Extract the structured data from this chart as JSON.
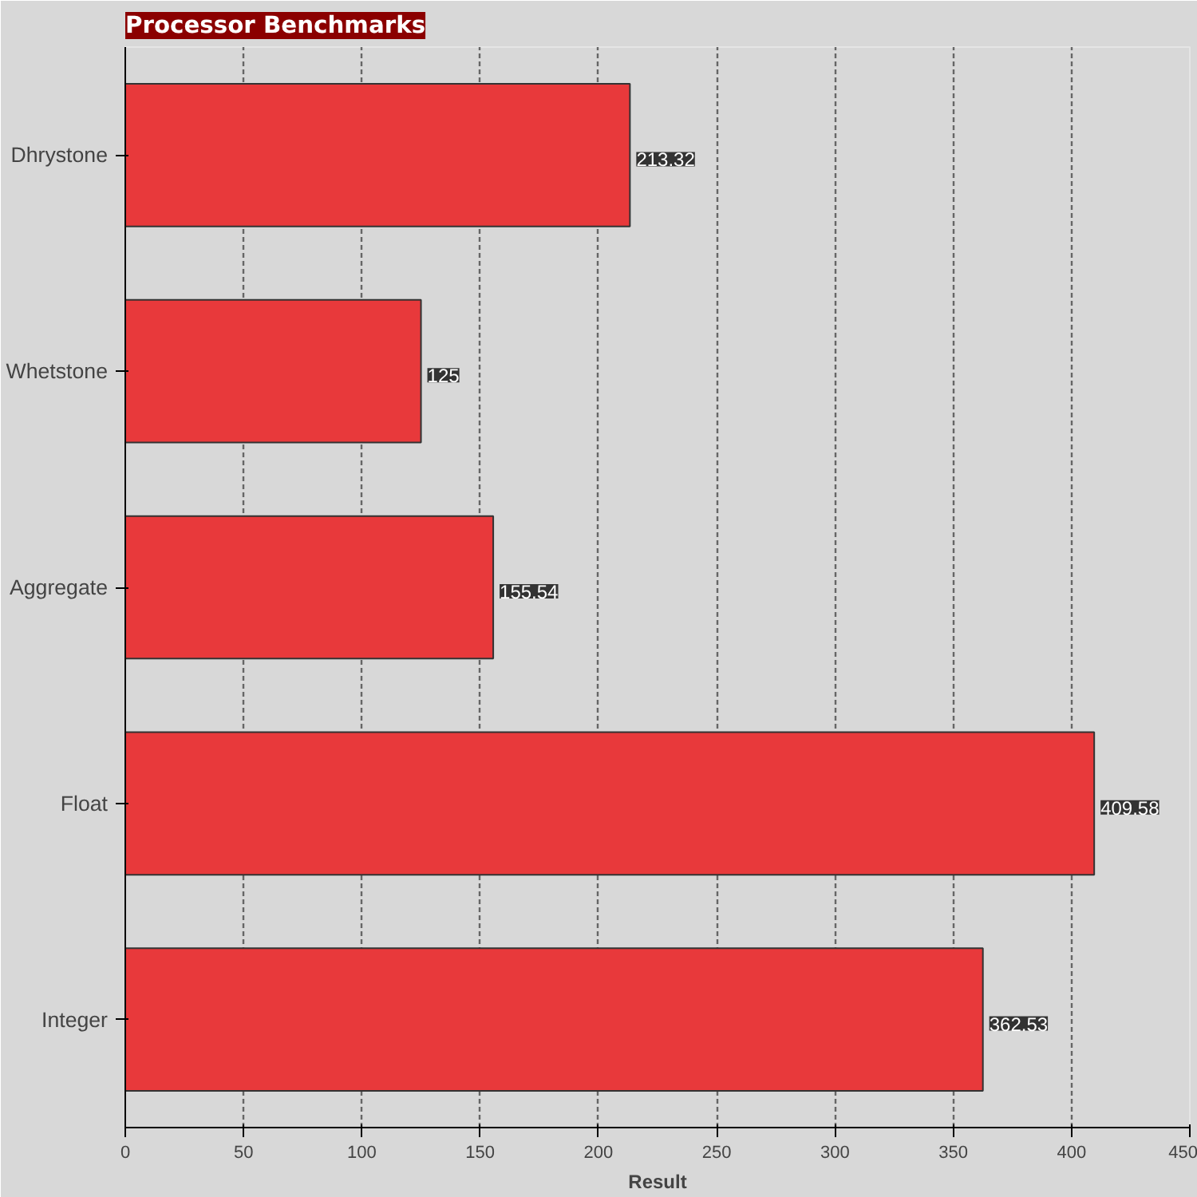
{
  "chart_data": {
    "type": "bar",
    "orientation": "horizontal",
    "title": "Processor Benchmarks",
    "xlabel": "Result",
    "categories": [
      "Dhrystone",
      "Whetstone",
      "Aggregate",
      "Float",
      "Integer"
    ],
    "values": [
      213.32,
      125,
      155.54,
      409.58,
      362.53
    ],
    "color": "#e8393b",
    "xlim": [
      0,
      450
    ],
    "xticks": [
      0,
      50,
      100,
      150,
      200,
      250,
      300,
      350,
      400,
      450
    ],
    "grid": "x",
    "data_labels": true
  }
}
